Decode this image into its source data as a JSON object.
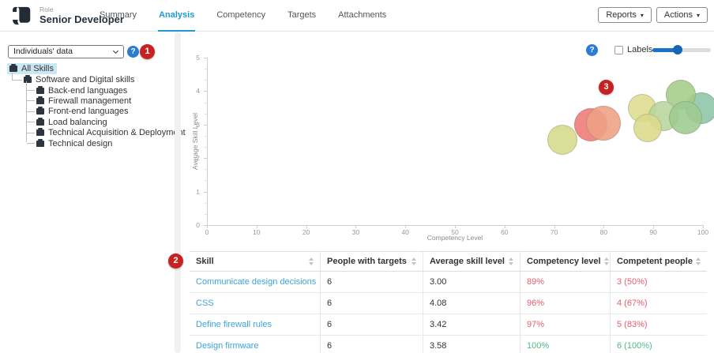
{
  "topbar": {
    "role_label": "Role",
    "role_name": "Senior Developer",
    "tabs": [
      {
        "label": "Summary",
        "active": false
      },
      {
        "label": "Analysis",
        "active": true
      },
      {
        "label": "Competency",
        "active": false
      },
      {
        "label": "Targets",
        "active": false
      },
      {
        "label": "Attachments",
        "active": false
      }
    ],
    "reports_button": "Reports",
    "actions_button": "Actions",
    "caret": "▾"
  },
  "sidebar": {
    "dataset_select_value": "Individuals' data",
    "help_icon": "?",
    "tree": {
      "root": "All Skills",
      "group": "Software and Digital skills",
      "children": [
        "Back-end languages",
        "Firewall management",
        "Front-end languages",
        "Load balancing",
        "Technical Acquisition & Deployment",
        "Technical design"
      ]
    }
  },
  "annotations": [
    {
      "label": "1"
    },
    {
      "label": "2"
    },
    {
      "label": "3"
    }
  ],
  "chart_controls": {
    "help_icon": "?",
    "labels_checkbox_label": "Labels",
    "labels_checked": false,
    "slider_value_pct": 43
  },
  "chart_data": {
    "type": "scatter",
    "xlabel": "Competency Level",
    "ylabel": "Average Skill Level",
    "xlim": [
      0,
      100
    ],
    "ylim": [
      0,
      5
    ],
    "xticks": [
      0,
      10,
      20,
      30,
      40,
      50,
      60,
      70,
      80,
      90,
      100
    ],
    "yticks": [
      0,
      1,
      2,
      3,
      4,
      5
    ],
    "grid": false,
    "legend": false,
    "bubbles": [
      {
        "x": 99.7,
        "y": 3.5,
        "r": 20,
        "color": "#8ec4a6"
      },
      {
        "x": 95.5,
        "y": 3.9,
        "r": 19,
        "color": "#a5cd88"
      },
      {
        "x": 87.7,
        "y": 3.5,
        "r": 18,
        "color": "#dedc8f"
      },
      {
        "x": 92.0,
        "y": 3.25,
        "r": 19,
        "color": "#b9d69c"
      },
      {
        "x": 96.5,
        "y": 3.2,
        "r": 21,
        "color": "#9ecb90"
      },
      {
        "x": 88.9,
        "y": 2.9,
        "r": 18,
        "color": "#dbdb8d"
      },
      {
        "x": 71.7,
        "y": 2.55,
        "r": 19,
        "color": "#d7da8b"
      },
      {
        "x": 77.4,
        "y": 3.0,
        "r": 21,
        "color": "#ee7a77"
      },
      {
        "x": 79.9,
        "y": 3.05,
        "r": 22,
        "color": "#efa184"
      }
    ]
  },
  "table": {
    "columns": [
      "Skill",
      "People with targets",
      "Average skill level",
      "Competency level",
      "Competent people"
    ],
    "rows": [
      {
        "skill": "Communicate design decisions",
        "people": "6",
        "avg": "3.00",
        "competency": "89%",
        "competent": "3 (50%)",
        "status": "bad"
      },
      {
        "skill": "CSS",
        "people": "6",
        "avg": "4.08",
        "competency": "96%",
        "competent": "4 (67%)",
        "status": "bad"
      },
      {
        "skill": "Define firewall rules",
        "people": "6",
        "avg": "3.42",
        "competency": "97%",
        "competent": "5 (83%)",
        "status": "bad"
      },
      {
        "skill": "Design firmware",
        "people": "6",
        "avg": "3.58",
        "competency": "100%",
        "competent": "6 (100%)",
        "status": "good"
      }
    ]
  }
}
